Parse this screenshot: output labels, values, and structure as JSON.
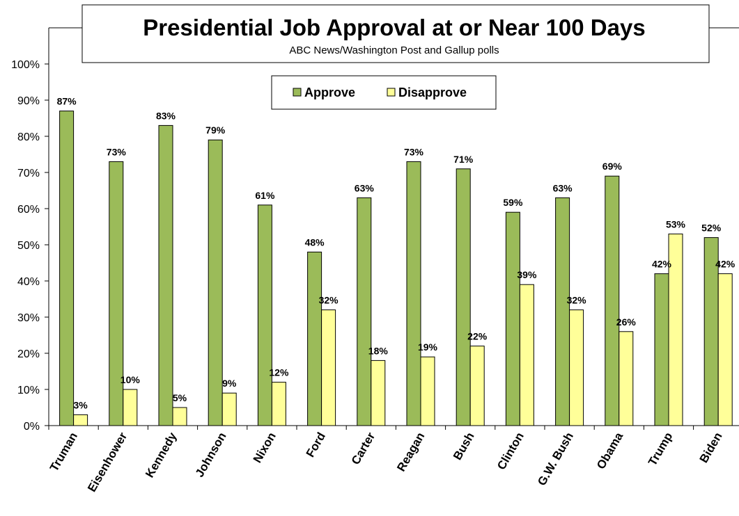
{
  "chart_data": {
    "type": "bar",
    "title": "Presidential Job Approval at or Near 100 Days",
    "subtitle": "ABC News/Washington Post  and Gallup polls",
    "categories": [
      "Truman",
      "Eisenhower",
      "Kennedy",
      "Johnson",
      "Nixon",
      "Ford",
      "Carter",
      "Reagan",
      "Bush",
      "Clinton",
      "G.W. Bush",
      "Obama",
      "Trump",
      "Biden"
    ],
    "series": [
      {
        "name": "Approve",
        "color": "#9bbb59",
        "values": [
          87,
          73,
          83,
          79,
          61,
          48,
          63,
          73,
          71,
          59,
          63,
          69,
          42,
          52
        ],
        "labels": [
          "87%",
          "73%",
          "83%",
          "79%",
          "61%",
          "48%",
          "63%",
          "73%",
          "71%",
          "59%",
          "63%",
          "69%",
          "42%",
          "52%"
        ]
      },
      {
        "name": "Disapprove",
        "color": "#ffff99",
        "values": [
          3,
          10,
          5,
          9,
          12,
          32,
          18,
          19,
          22,
          39,
          32,
          26,
          53,
          42
        ],
        "labels": [
          "3%",
          "10%",
          "5%",
          "9%",
          "12%",
          "32%",
          "18%",
          "19%",
          "22%",
          "39%",
          "32%",
          "26%",
          "53%",
          "42%"
        ]
      }
    ],
    "ylim": [
      0,
      100
    ],
    "yticks": [
      "0%",
      "10%",
      "20%",
      "30%",
      "40%",
      "50%",
      "60%",
      "70%",
      "80%",
      "90%",
      "100%"
    ],
    "xlabel": "",
    "ylabel": "",
    "grid": false,
    "legend_position": "top-center"
  }
}
